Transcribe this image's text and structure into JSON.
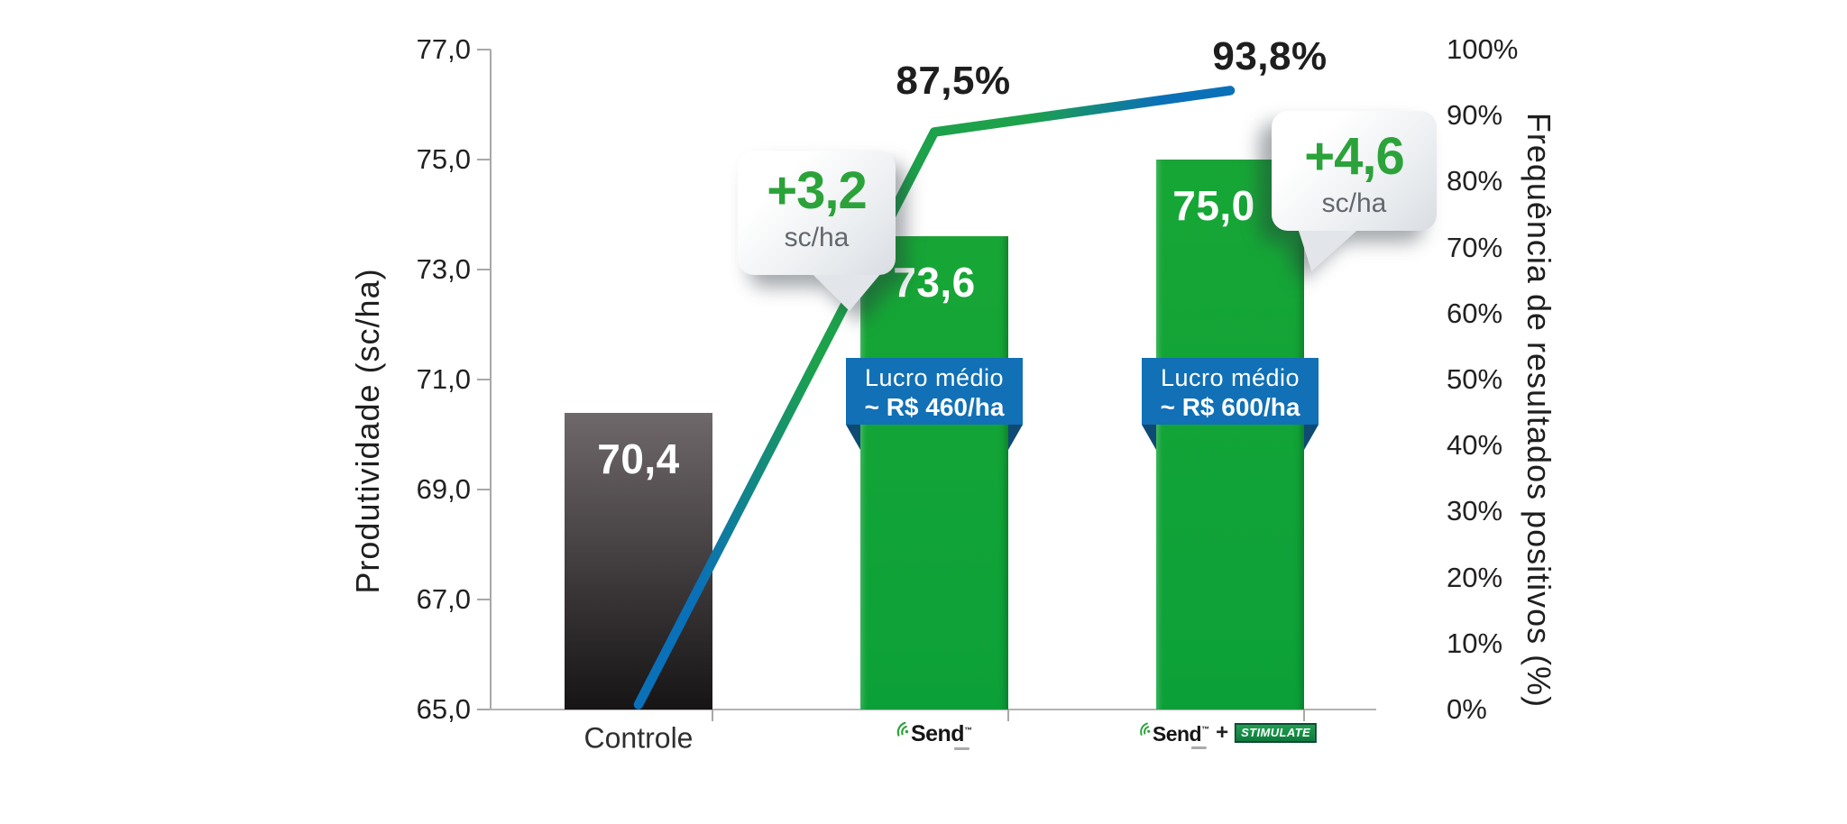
{
  "axes": {
    "left": {
      "title": "Produtividade (sc/ha)",
      "ticks": [
        "77,0",
        "75,0",
        "73,0",
        "71,0",
        "69,0",
        "67,0",
        "65,0"
      ]
    },
    "right": {
      "title": "Frequência de resultados positivos (%)",
      "ticks": [
        "100%",
        "90%",
        "80%",
        "70%",
        "60%",
        "50%",
        "40%",
        "30%",
        "20%",
        "10%",
        "0%"
      ]
    }
  },
  "categories": {
    "controle": {
      "label": "Controle"
    },
    "send": {
      "brand": "Send",
      "trademark": "™"
    },
    "send_stimulate": {
      "brand": "Send",
      "trademark": "™",
      "plus": "+",
      "stimulate": "STIMULATE"
    }
  },
  "bars": {
    "value_labels": [
      "70,4",
      "73,6",
      "75,0"
    ]
  },
  "line": {
    "labels": {
      "send": "87,5%",
      "send_stimulate": "93,8%"
    }
  },
  "callouts": {
    "send": {
      "value": "+3,2",
      "unit": "sc/ha"
    },
    "send_stimulate": {
      "value": "+4,6",
      "unit": "sc/ha"
    }
  },
  "ribbons": {
    "send": {
      "line1": "Lucro médio",
      "line2": "~ R$ 460/ha"
    },
    "send_stimulate": {
      "line1": "Lucro médio",
      "line2": "~ R$ 600/ha"
    }
  },
  "colors": {
    "bar_green": "#12a130",
    "bar_gray_top": "#6f686b",
    "bar_gray_bottom": "#161415",
    "line_blue": "#0a70b8",
    "line_green": "#1da14b",
    "ribbon_blue": "#1170b6",
    "ribbon_fold": "#0e4a74",
    "callout_green": "#2ba33a",
    "stimulate_green": "#15913f"
  },
  "chart_data": {
    "type": "bar",
    "subtype": "combo bar + line, dual axis",
    "categories": [
      "Controle",
      "Send",
      "Send + STIMULATE"
    ],
    "series": [
      {
        "name": "Produtividade (sc/ha)",
        "type": "bar",
        "axis": "left",
        "values": [
          70.4,
          73.6,
          75.0
        ]
      },
      {
        "name": "Frequência de resultados positivos (%)",
        "type": "line",
        "axis": "right",
        "values": [
          0,
          87.5,
          93.8
        ]
      }
    ],
    "xlabel": "",
    "ylabel_left": "Produtividade (sc/ha)",
    "ylabel_right": "Frequência de resultados positivos (%)",
    "ylim_left": [
      65.0,
      77.0
    ],
    "ylim_right": [
      0,
      100
    ],
    "grid": false,
    "legend": false,
    "annotations": [
      "+3,2 sc/ha (Send vs Controle)",
      "+4,6 sc/ha (Send + STIMULATE vs Controle)",
      "Lucro médio ~ R$ 460/ha (Send)",
      "Lucro médio ~ R$ 600/ha (Send + STIMULATE)"
    ]
  }
}
